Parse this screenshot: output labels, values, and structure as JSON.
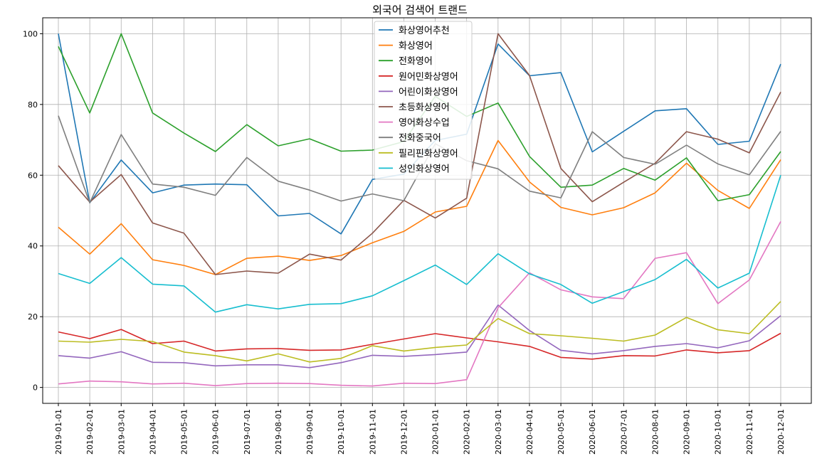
{
  "chart_data": {
    "type": "line",
    "title": "외국어 검색어 트랜드",
    "xlabel": "",
    "ylabel": "",
    "ylim": [
      -4.5,
      104.5
    ],
    "yticks": [
      0,
      20,
      40,
      60,
      80,
      100
    ],
    "grid": true,
    "legend_position": "top-center",
    "x": [
      "2019-01-01",
      "2019-02-01",
      "2019-03-01",
      "2019-04-01",
      "2019-05-01",
      "2019-06-01",
      "2019-07-01",
      "2019-08-01",
      "2019-09-01",
      "2019-10-01",
      "2019-11-01",
      "2019-12-01",
      "2020-01-01",
      "2020-02-01",
      "2020-03-01",
      "2020-04-01",
      "2020-05-01",
      "2020-06-01",
      "2020-07-01",
      "2020-08-01",
      "2020-09-01",
      "2020-10-01",
      "2020-11-01",
      "2020-12-01"
    ],
    "series": [
      {
        "name": "화상영어추천",
        "color": "#1f77b4",
        "values": [
          100,
          52.2,
          64.3,
          55,
          57.2,
          57.5,
          57.3,
          48.5,
          49.2,
          43.4,
          58.8,
          60.3,
          69.8,
          71.6,
          97.1,
          88.1,
          89,
          66.6,
          72.4,
          78.2,
          78.8,
          68.7,
          69.6,
          91.4
        ]
      },
      {
        "name": "화상영어",
        "color": "#ff7f0e",
        "values": [
          45.3,
          37.7,
          46.3,
          36.1,
          34.5,
          31.9,
          36.5,
          37.1,
          35.9,
          37.3,
          40.9,
          44.1,
          49.6,
          51.2,
          69.8,
          58.1,
          50.9,
          48.8,
          50.8,
          55,
          63.4,
          55.7,
          50.6,
          64.4
        ]
      },
      {
        "name": "전화영어",
        "color": "#2ca02c",
        "values": [
          96.4,
          77.6,
          100,
          77.6,
          71.9,
          66.7,
          74.3,
          68.3,
          70.3,
          66.8,
          67.1,
          69.5,
          82.3,
          76.6,
          80.4,
          65.3,
          56.6,
          57.2,
          61.9,
          58.6,
          64.9,
          52.8,
          54.5,
          66.7
        ]
      },
      {
        "name": "원어민화상영어",
        "color": "#d62728",
        "values": [
          15.7,
          13.8,
          16.4,
          12.4,
          13.1,
          10.3,
          10.9,
          11,
          10.5,
          10.6,
          12.2,
          13.7,
          15.2,
          14,
          12.9,
          11.6,
          8.5,
          8,
          9,
          8.9,
          10.6,
          9.8,
          10.4,
          15.3
        ]
      },
      {
        "name": "어린이화상영어",
        "color": "#9467bd",
        "values": [
          9,
          8.3,
          10.1,
          7.1,
          7,
          6.1,
          6.4,
          6.4,
          5.6,
          7,
          9.1,
          8.8,
          9.3,
          10,
          23.3,
          16.1,
          10.5,
          9.5,
          10.4,
          11.6,
          12.4,
          11.2,
          13.2,
          20.3
        ]
      },
      {
        "name": "초등화상영어",
        "color": "#8c564b",
        "values": [
          62.7,
          52.4,
          60.2,
          46.5,
          43.6,
          31.9,
          32.9,
          32.3,
          37.7,
          36,
          43.6,
          52.9,
          47.9,
          53.5,
          100,
          88.2,
          61.9,
          52.5,
          58,
          63.4,
          72.3,
          70.2,
          66.3,
          83.5
        ]
      },
      {
        "name": "영어화상수업",
        "color": "#e377c2",
        "values": [
          1,
          1.8,
          1.6,
          1,
          1.2,
          0.5,
          1.1,
          1.2,
          1.1,
          0.6,
          0.4,
          1.2,
          1.1,
          2.2,
          22.5,
          32.4,
          27.6,
          25.6,
          25.1,
          36.5,
          38.1,
          23.7,
          30.4,
          46.9
        ]
      },
      {
        "name": "전화중국어",
        "color": "#7f7f7f",
        "values": [
          76.8,
          52.2,
          71.5,
          57.5,
          56.6,
          54.3,
          65,
          58.3,
          55.8,
          52.7,
          54.7,
          52.8,
          68.9,
          64.1,
          61.8,
          55.5,
          53.6,
          72.3,
          65,
          63.1,
          68.5,
          63.2,
          60.1,
          72.4
        ]
      },
      {
        "name": "필리핀화상영어",
        "color": "#bcbd22",
        "values": [
          13.1,
          12.8,
          13.6,
          13,
          10,
          9,
          7.5,
          9.5,
          7.2,
          8.2,
          11.8,
          10.3,
          11.3,
          12,
          19.5,
          15.2,
          14.6,
          13.9,
          13.1,
          14.8,
          19.8,
          16.3,
          15.2,
          24.3
        ]
      },
      {
        "name": "성인화상영어",
        "color": "#17becf",
        "values": [
          32.2,
          29.4,
          36.7,
          29.2,
          28.7,
          21.3,
          23.4,
          22.2,
          23.5,
          23.7,
          25.9,
          30.2,
          34.6,
          29.1,
          37.8,
          32.1,
          29.1,
          23.8,
          27.1,
          30.5,
          36.2,
          28.1,
          32.3,
          60
        ]
      }
    ]
  }
}
